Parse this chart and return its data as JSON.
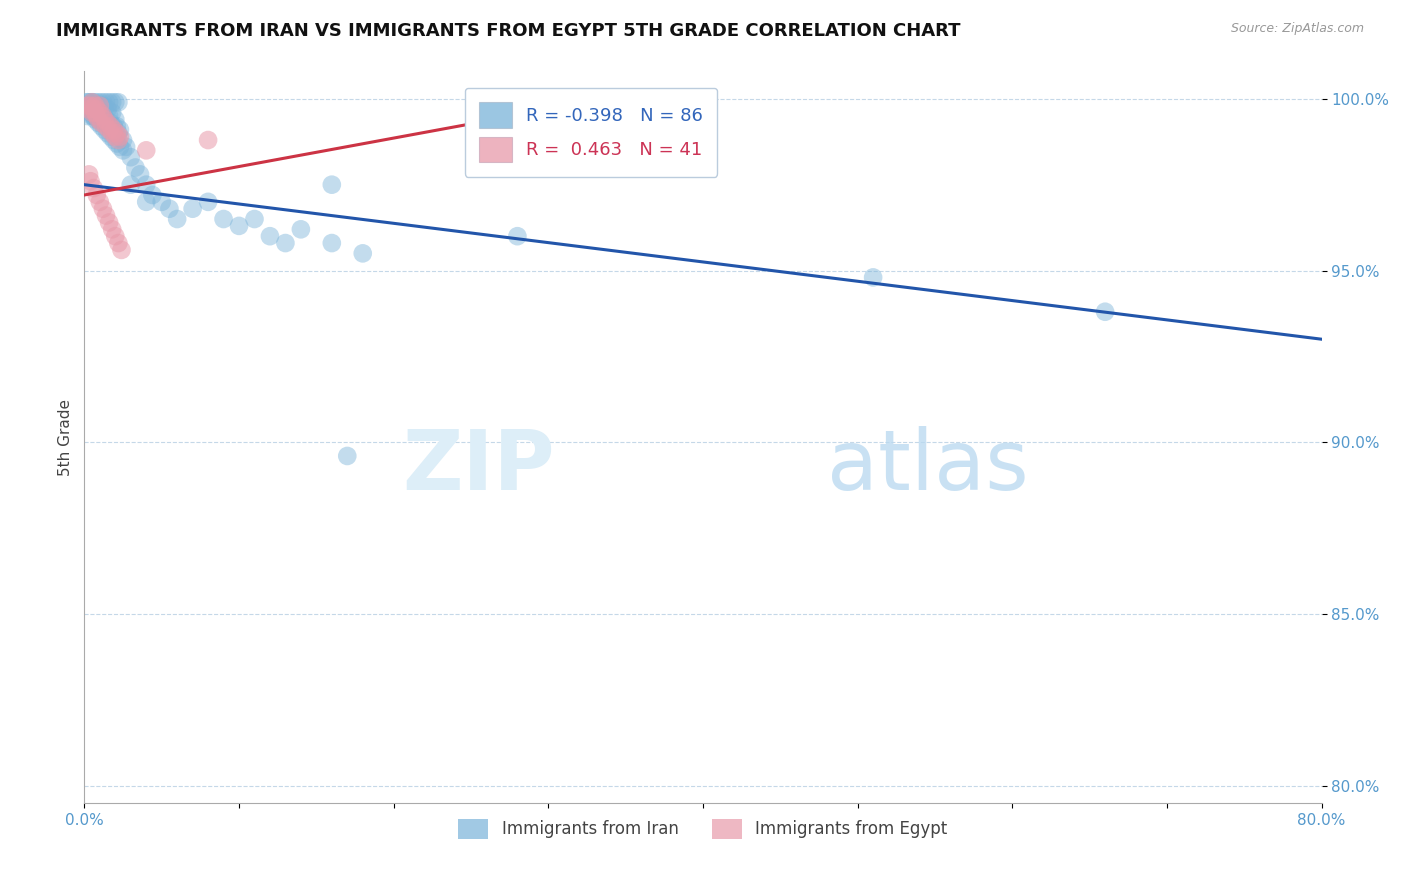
{
  "title": "IMMIGRANTS FROM IRAN VS IMMIGRANTS FROM EGYPT 5TH GRADE CORRELATION CHART",
  "source": "Source: ZipAtlas.com",
  "ylabel": "5th Grade",
  "legend_blue_label": "Immigrants from Iran",
  "legend_pink_label": "Immigrants from Egypt",
  "R_blue": -0.398,
  "N_blue": 86,
  "R_pink": 0.463,
  "N_pink": 41,
  "xlim": [
    0.0,
    0.8
  ],
  "ylim": [
    0.795,
    1.008
  ],
  "xticks": [
    0.0,
    0.1,
    0.2,
    0.3,
    0.4,
    0.5,
    0.6,
    0.7,
    0.8
  ],
  "yticks": [
    0.8,
    0.85,
    0.9,
    0.95,
    1.0
  ],
  "blue_color": "#7ab3d9",
  "pink_color": "#e89aaa",
  "line_blue_color": "#2255aa",
  "line_pink_color": "#cc3344",
  "blue_line_x": [
    0.0,
    0.8
  ],
  "blue_line_y": [
    0.975,
    0.93
  ],
  "pink_line_x": [
    0.0,
    0.35
  ],
  "pink_line_y": [
    0.972,
    1.001
  ],
  "blue_scatter_x": [
    0.002,
    0.003,
    0.003,
    0.004,
    0.004,
    0.005,
    0.005,
    0.006,
    0.006,
    0.007,
    0.007,
    0.008,
    0.008,
    0.009,
    0.009,
    0.01,
    0.01,
    0.011,
    0.011,
    0.012,
    0.012,
    0.013,
    0.013,
    0.014,
    0.015,
    0.015,
    0.016,
    0.017,
    0.018,
    0.019,
    0.02,
    0.021,
    0.022,
    0.023,
    0.025,
    0.027,
    0.03,
    0.033,
    0.036,
    0.04,
    0.044,
    0.05,
    0.055,
    0.06,
    0.07,
    0.08,
    0.09,
    0.1,
    0.11,
    0.12,
    0.13,
    0.14,
    0.16,
    0.18,
    0.003,
    0.005,
    0.007,
    0.009,
    0.011,
    0.013,
    0.015,
    0.017,
    0.019,
    0.021,
    0.023,
    0.025,
    0.01,
    0.012,
    0.008,
    0.006,
    0.004,
    0.014,
    0.016,
    0.018,
    0.02,
    0.022,
    0.03,
    0.04,
    0.002,
    0.16,
    0.28,
    0.51,
    0.66,
    0.002,
    0.17
  ],
  "blue_scatter_y": [
    0.999,
    0.997,
    0.998,
    0.998,
    0.996,
    0.997,
    0.999,
    0.995,
    0.998,
    0.996,
    0.997,
    0.995,
    0.998,
    0.994,
    0.997,
    0.996,
    0.998,
    0.994,
    0.997,
    0.995,
    0.998,
    0.993,
    0.997,
    0.994,
    0.997,
    0.993,
    0.995,
    0.993,
    0.996,
    0.992,
    0.994,
    0.992,
    0.99,
    0.991,
    0.988,
    0.986,
    0.983,
    0.98,
    0.978,
    0.975,
    0.972,
    0.97,
    0.968,
    0.965,
    0.968,
    0.97,
    0.965,
    0.963,
    0.965,
    0.96,
    0.958,
    0.962,
    0.958,
    0.955,
    0.997,
    0.995,
    0.994,
    0.993,
    0.992,
    0.991,
    0.99,
    0.989,
    0.988,
    0.987,
    0.986,
    0.985,
    0.999,
    0.999,
    0.999,
    0.999,
    0.999,
    0.999,
    0.999,
    0.999,
    0.999,
    0.999,
    0.975,
    0.97,
    0.999,
    0.975,
    0.96,
    0.948,
    0.938,
    0.995,
    0.896
  ],
  "pink_scatter_x": [
    0.002,
    0.003,
    0.004,
    0.005,
    0.005,
    0.006,
    0.007,
    0.007,
    0.008,
    0.008,
    0.009,
    0.01,
    0.01,
    0.011,
    0.012,
    0.013,
    0.014,
    0.015,
    0.016,
    0.017,
    0.018,
    0.019,
    0.02,
    0.021,
    0.022,
    0.023,
    0.003,
    0.004,
    0.006,
    0.008,
    0.01,
    0.012,
    0.014,
    0.016,
    0.018,
    0.02,
    0.022,
    0.024,
    0.04,
    0.08,
    0.34
  ],
  "pink_scatter_y": [
    0.998,
    0.997,
    0.998,
    0.996,
    0.999,
    0.997,
    0.996,
    0.998,
    0.995,
    0.997,
    0.994,
    0.996,
    0.998,
    0.993,
    0.995,
    0.994,
    0.992,
    0.993,
    0.991,
    0.992,
    0.99,
    0.991,
    0.989,
    0.99,
    0.988,
    0.989,
    0.978,
    0.976,
    0.974,
    0.972,
    0.97,
    0.968,
    0.966,
    0.964,
    0.962,
    0.96,
    0.958,
    0.956,
    0.985,
    0.988,
    0.999
  ]
}
